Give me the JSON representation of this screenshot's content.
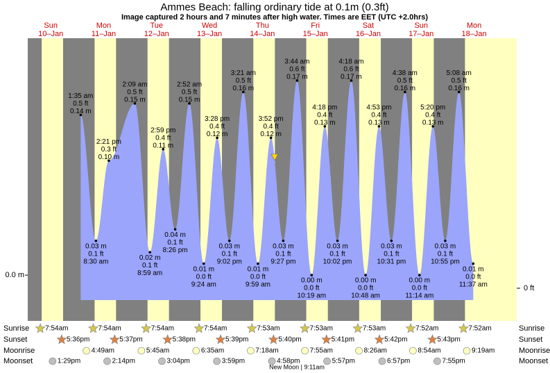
{
  "chart_data": {
    "type": "tide",
    "title": "Ammes Beach: falling  ordinary tide at 0.1m (0.3ft)",
    "subtitle": "Image captured 2 hours and 7 minutes after high water. Times are EET (UTC +2.0hrs)",
    "ylim": [
      -0.04,
      0.207
    ],
    "yticks": [
      {
        "value": 0,
        "label": "0.0 m"
      }
    ],
    "y2lim": [
      -0.098,
      0.75
    ],
    "y2ticks": [
      {
        "value": 0,
        "label": "0 ft"
      }
    ],
    "area_color": "#9ba5fb",
    "day_color": "#ffffc0",
    "night_color": "#808080",
    "row_labels": [
      "Sunrise",
      "Sunset",
      "Moonrise",
      "Moonset"
    ],
    "moon_phase": "New Moon | 9:11am",
    "days": [
      {
        "weekday": "Sun",
        "date": "10–Jan",
        "tides": [],
        "sunrise": "7:54am",
        "sunset": "5:36pm",
        "moonrise": null,
        "moonset": "1:29pm"
      },
      {
        "weekday": "Mon",
        "date": "11–Jan",
        "tides": [
          {
            "time": "1:35 am",
            "ft": "0.5 ft",
            "value": 0.14,
            "label": "0.14 m"
          },
          {
            "time": "8:30 am",
            "ft": "0.1 ft",
            "value": 0.03,
            "label": "0.03 m"
          },
          {
            "time": "2:21 pm",
            "ft": "0.3 ft",
            "value": 0.1,
            "label": "0.10 m"
          }
        ],
        "sunrise": "7:54am",
        "sunset": "5:37pm",
        "moonrise": "4:49am",
        "moonset": "2:14pm"
      },
      {
        "weekday": "Tue",
        "date": "12–Jan",
        "tides": [
          {
            "time": "2:09 am",
            "ft": "0.5 ft",
            "value": 0.15,
            "label": "0.15 m"
          },
          {
            "time": "8:59 am",
            "ft": "0.1 ft",
            "value": 0.02,
            "label": "0.02 m"
          },
          {
            "time": "2:59 pm",
            "ft": "0.4 ft",
            "value": 0.11,
            "label": "0.11 m"
          },
          {
            "time": "8:26 pm",
            "ft": "0.1 ft",
            "value": 0.04,
            "label": "0.04 m"
          }
        ],
        "sunrise": "7:54am",
        "sunset": "5:38pm",
        "moonrise": "5:45am",
        "moonset": "3:04pm"
      },
      {
        "weekday": "Wed",
        "date": "13–Jan",
        "tides": [
          {
            "time": "2:52 am",
            "ft": "0.5 ft",
            "value": 0.15,
            "label": "0.15 m"
          },
          {
            "time": "9:24 am",
            "ft": "0.0 ft",
            "value": 0.01,
            "label": "0.01 m"
          },
          {
            "time": "3:28 pm",
            "ft": "0.4 ft",
            "value": 0.12,
            "label": "0.12 m"
          },
          {
            "time": "9:02 pm",
            "ft": "0.1 ft",
            "value": 0.03,
            "label": "0.03 m"
          }
        ],
        "sunrise": "7:54am",
        "sunset": "5:39pm",
        "moonrise": "6:35am",
        "moonset": "3:59pm"
      },
      {
        "weekday": "Thu",
        "date": "14–Jan",
        "tides": [
          {
            "time": "3:21 am",
            "ft": "0.5 ft",
            "value": 0.16,
            "label": "0.16 m"
          },
          {
            "time": "9:59 am",
            "ft": "0.0 ft",
            "value": 0.01,
            "label": "0.01 m"
          },
          {
            "time": "3:52 pm",
            "ft": "0.4 ft",
            "value": 0.12,
            "label": "0.12 m"
          },
          {
            "time": "9:27 pm",
            "ft": "0.1 ft",
            "value": 0.03,
            "label": "0.03 m"
          }
        ],
        "sunrise": "7:53am",
        "sunset": "5:40pm",
        "moonrise": "7:18am",
        "moonset": "4:58pm"
      },
      {
        "weekday": "Fri",
        "date": "15–Jan",
        "tides": [
          {
            "time": "3:44 am",
            "ft": "0.6 ft",
            "value": 0.17,
            "label": "0.17 m"
          },
          {
            "time": "10:19 am",
            "ft": "0.0 ft",
            "value": 0.0,
            "label": "0.00 m"
          },
          {
            "time": "4:18 pm",
            "ft": "0.4 ft",
            "value": 0.13,
            "label": "0.13 m"
          },
          {
            "time": "10:02 pm",
            "ft": "0.1 ft",
            "value": 0.03,
            "label": "0.03 m"
          }
        ],
        "sunrise": "7:53am",
        "sunset": "5:41pm",
        "moonrise": "7:55am",
        "moonset": "5:57pm"
      },
      {
        "weekday": "Sat",
        "date": "16–Jan",
        "tides": [
          {
            "time": "4:18 am",
            "ft": "0.6 ft",
            "value": 0.17,
            "label": "0.17 m"
          },
          {
            "time": "10:48 am",
            "ft": "0.0 ft",
            "value": 0.0,
            "label": "0.00 m"
          },
          {
            "time": "4:53 pm",
            "ft": "0.4 ft",
            "value": 0.13,
            "label": "0.13 m"
          },
          {
            "time": "10:31 pm",
            "ft": "0.1 ft",
            "value": 0.03,
            "label": "0.03 m"
          }
        ],
        "sunrise": "7:53am",
        "sunset": "5:42pm",
        "moonrise": "8:26am",
        "moonset": "6:57pm"
      },
      {
        "weekday": "Sun",
        "date": "17–Jan",
        "tides": [
          {
            "time": "4:38 am",
            "ft": "0.5 ft",
            "value": 0.16,
            "label": "0.16 m"
          },
          {
            "time": "11:14 am",
            "ft": "0.0 ft",
            "value": 0.0,
            "label": "0.00 m"
          },
          {
            "time": "5:20 pm",
            "ft": "0.4 ft",
            "value": 0.13,
            "label": "0.13 m"
          },
          {
            "time": "10:55 pm",
            "ft": "0.1 ft",
            "value": 0.03,
            "label": "0.03 m"
          }
        ],
        "sunrise": "7:52am",
        "sunset": "5:43pm",
        "moonrise": "8:54am",
        "moonset": "7:55pm"
      },
      {
        "weekday": "Mon",
        "date": "18–Jan",
        "tides": [
          {
            "time": "5:08 am",
            "ft": "0.5 ft",
            "value": 0.16,
            "label": "0.16 m"
          },
          {
            "time": "11:37 am",
            "ft": "0.0 ft",
            "value": 0.01,
            "label": "0.01 m"
          }
        ],
        "sunrise": "7:52am",
        "sunset": null,
        "moonrise": "9:19am",
        "moonset": null
      }
    ]
  }
}
